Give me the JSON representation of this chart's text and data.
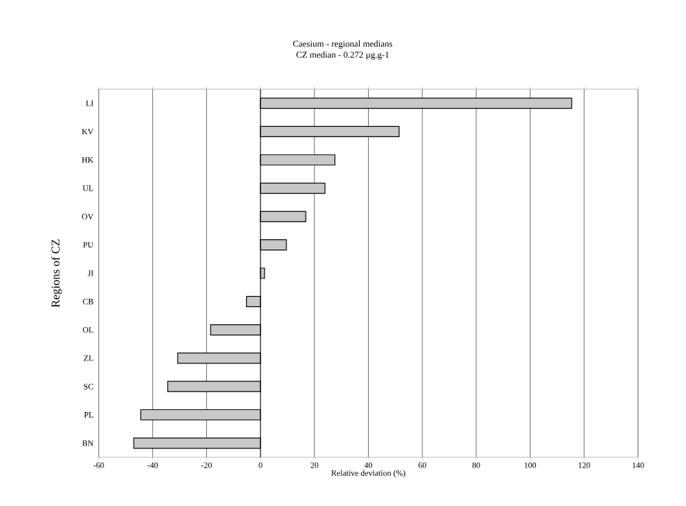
{
  "chart_data": {
    "type": "bar",
    "orientation": "horizontal",
    "title": "Caesium - regional medians",
    "subtitle": "CZ median - 0.272 µg.g-1",
    "xlabel": "Relative deviation (%)",
    "ylabel": "Regions of CZ",
    "categories": [
      "LI",
      "KV",
      "HK",
      "UL",
      "OV",
      "PU",
      "JI",
      "CB",
      "OL",
      "ZL",
      "SC",
      "PL",
      "BN"
    ],
    "values": [
      115.4,
      51.4,
      27.6,
      23.9,
      16.8,
      9.6,
      1.5,
      -5.2,
      -18.5,
      -30.7,
      -34.4,
      -44.4,
      -47
    ],
    "color": "#c8c8c8",
    "xlim": [
      -60,
      140
    ],
    "xticks": [
      -60,
      -40,
      -20,
      0,
      20,
      40,
      60,
      80,
      100,
      120,
      140
    ],
    "grid": "x"
  }
}
